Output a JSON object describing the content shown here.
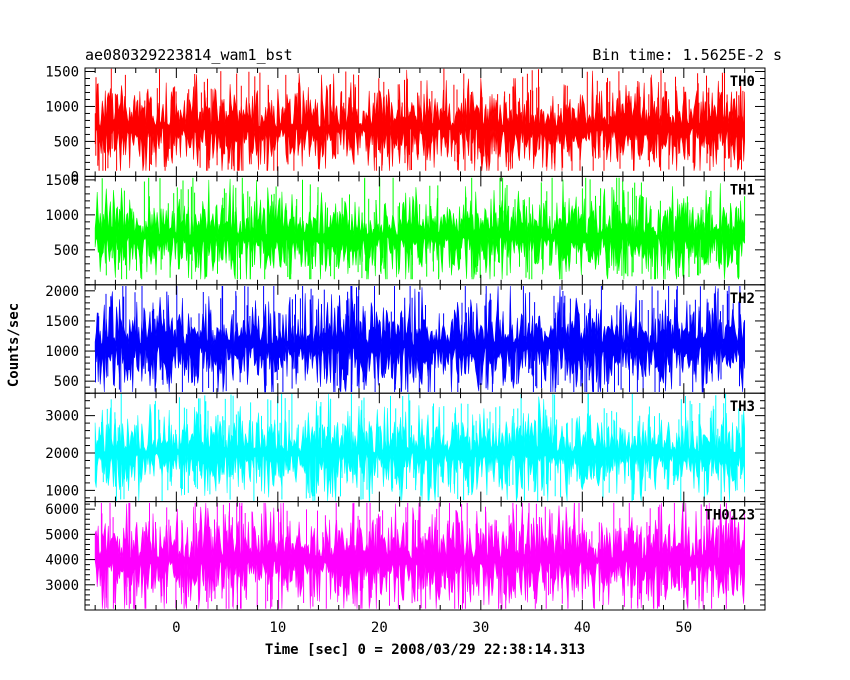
{
  "header": {
    "title": "ae080329223814_wam1_bst",
    "bin_time": "Bin time: 1.5625E-2 s"
  },
  "axes": {
    "ylabel": "Counts/sec",
    "xlabel": "Time [sec] 0 = 2008/03/29 22:38:14.313"
  },
  "chart_data": {
    "type": "line",
    "title": "ae080329223814_wam1_bst",
    "subtitle": "Bin time: 1.5625E-2 s",
    "xlabel": "Time [sec] 0 = 2008/03/29 22:38:14.313",
    "ylabel": "Counts/sec",
    "xlim": [
      -9,
      58
    ],
    "x_ticks": [
      0,
      10,
      20,
      30,
      40,
      50
    ],
    "x_range": [
      -8,
      56
    ],
    "grid": false,
    "panels": [
      {
        "name": "TH0",
        "color": "#ff0000",
        "ylim": [
          0,
          1550
        ],
        "y_ticks": [
          0,
          500,
          1000,
          1500
        ],
        "mean": 700,
        "spread": 330,
        "min": 80,
        "max": 1540
      },
      {
        "name": "TH1",
        "color": "#00ff00",
        "ylim": [
          0,
          1550
        ],
        "y_ticks": [
          500,
          1000,
          1500
        ],
        "mean": 700,
        "spread": 330,
        "min": 80,
        "max": 1530
      },
      {
        "name": "TH2",
        "color": "#0000ff",
        "ylim": [
          300,
          2100
        ],
        "y_ticks": [
          500,
          1000,
          1500,
          2000
        ],
        "mean": 1100,
        "spread": 430,
        "min": 320,
        "max": 2080
      },
      {
        "name": "TH3",
        "color": "#00ffff",
        "ylim": [
          700,
          3600
        ],
        "y_ticks": [
          1000,
          2000,
          3000
        ],
        "mean": 2000,
        "spread": 620,
        "min": 720,
        "max": 3580
      },
      {
        "name": "TH0123",
        "color": "#ff00ff",
        "ylim": [
          2000,
          6300
        ],
        "y_ticks": [
          3000,
          4000,
          5000,
          6000
        ],
        "mean": 4000,
        "spread": 1050,
        "min": 2050,
        "max": 6250
      }
    ]
  }
}
